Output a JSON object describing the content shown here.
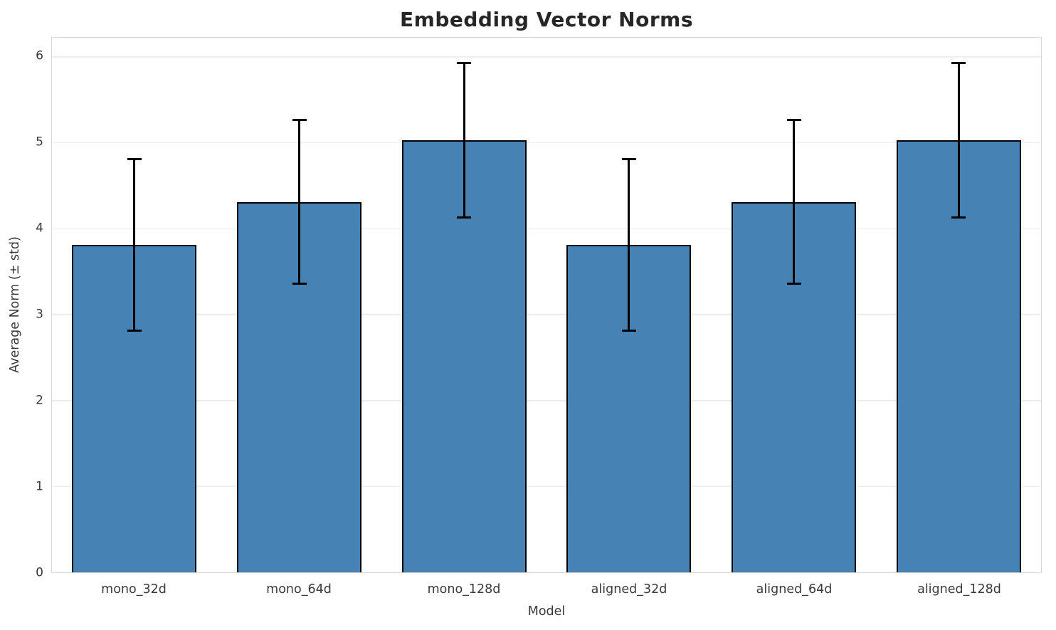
{
  "chart_data": {
    "type": "bar",
    "title": "Embedding Vector Norms",
    "xlabel": "Model",
    "ylabel": "Average Norm (± std)",
    "categories": [
      "mono_32d",
      "mono_64d",
      "mono_128d",
      "aligned_32d",
      "aligned_64d",
      "aligned_128d"
    ],
    "values": [
      3.81,
      4.31,
      5.03,
      3.81,
      4.31,
      5.03
    ],
    "errors": [
      1.0,
      0.95,
      0.9,
      1.0,
      0.95,
      0.9
    ],
    "error_extents": [
      [
        2.81,
        4.81
      ],
      [
        3.36,
        5.27
      ],
      [
        4.13,
        5.93
      ],
      [
        2.81,
        4.81
      ],
      [
        3.36,
        5.27
      ],
      [
        4.13,
        5.93
      ]
    ],
    "yticks": [
      0,
      1,
      2,
      3,
      4,
      5,
      6
    ],
    "ylim": [
      0,
      6.22
    ],
    "grid": true,
    "legend": false,
    "colors": {
      "bar_fill": "#4682b4",
      "bar_edge": "#000000",
      "error_bar": "#000000",
      "gridline": "#ebebeb",
      "spine": "#d7d7d7",
      "tick_text": "#3a3a3a",
      "title_text": "#262626",
      "background": "#ffffff"
    }
  }
}
